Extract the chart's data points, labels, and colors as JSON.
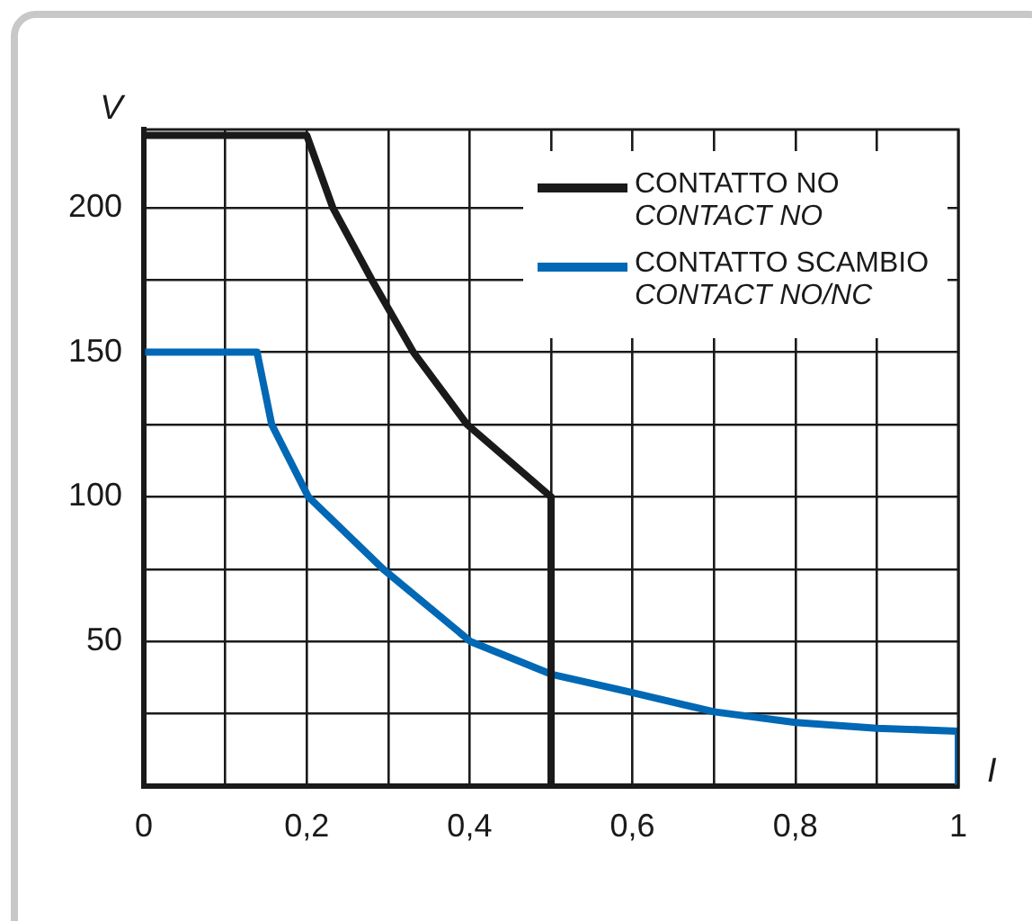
{
  "chart_data": {
    "type": "line",
    "xlabel": "I",
    "ylabel": "V",
    "xlim": [
      0,
      1
    ],
    "ylim": [
      0,
      227
    ],
    "xticks": [
      {
        "value": 0,
        "label": "0"
      },
      {
        "value": 0.1,
        "label": null
      },
      {
        "value": 0.2,
        "label": "0,2"
      },
      {
        "value": 0.3,
        "label": null
      },
      {
        "value": 0.4,
        "label": "0,4"
      },
      {
        "value": 0.5,
        "label": null
      },
      {
        "value": 0.6,
        "label": "0,6"
      },
      {
        "value": 0.7,
        "label": null
      },
      {
        "value": 0.8,
        "label": "0,8"
      },
      {
        "value": 0.9,
        "label": null
      },
      {
        "value": 1,
        "label": "1"
      }
    ],
    "yticks": [
      {
        "value": 0,
        "label": null
      },
      {
        "value": 25,
        "label": null
      },
      50,
      {
        "value": 75,
        "label": null
      },
      100,
      {
        "value": 125,
        "label": null
      },
      150,
      {
        "value": 175,
        "label": null
      },
      200
    ],
    "grid": true,
    "legend": "top right",
    "marker": "none",
    "line_style": "solid",
    "series": [
      {
        "name": "CONTATTO NO\nCONTACT NO",
        "color": "#1a1a1a",
        "x": [
          0,
          0.2,
          0.232,
          0.28,
          0.331,
          0.397,
          0.5,
          0.5
        ],
        "values": [
          225,
          225,
          200,
          175,
          150,
          125,
          100,
          0
        ]
      },
      {
        "name": "CONTATTO SCAMBIO\nCONTACT NO/NC",
        "color": "#0068b4",
        "x": [
          0,
          0.139,
          0.157,
          0.202,
          0.294,
          0.401,
          0.5,
          0.6,
          0.7,
          0.8,
          0.9,
          1,
          1
        ],
        "values": [
          150,
          150,
          125,
          100,
          75,
          50,
          38.7,
          32.3,
          25.7,
          22,
          20,
          19,
          0
        ]
      }
    ]
  }
}
